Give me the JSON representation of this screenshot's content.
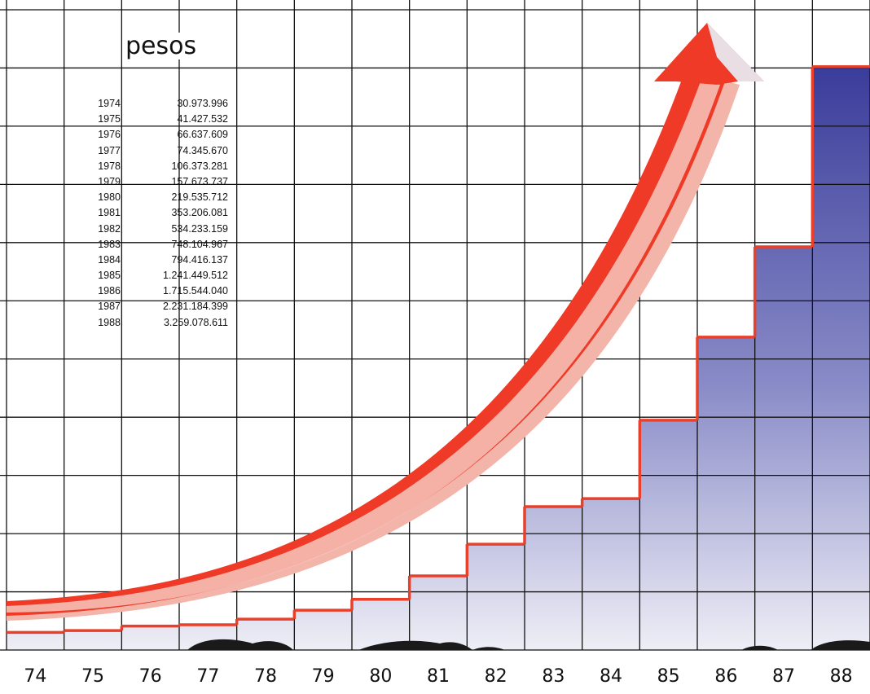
{
  "unit_label": "pesos",
  "colors": {
    "step_line": "#e8402a",
    "area_top": "#3a3c9a",
    "area_bottom": "#e8e8f4",
    "arrow_red": "#ee3a26",
    "grid": "#111111"
  },
  "chart_data": {
    "type": "line",
    "title": "",
    "xlabel": "",
    "ylabel": "pesos",
    "x_tick_labels": [
      "74",
      "75",
      "76",
      "77",
      "78",
      "79",
      "80",
      "81",
      "82",
      "83",
      "84",
      "85",
      "86",
      "87",
      "88"
    ],
    "table_years": [
      "1974",
      "1975",
      "1976",
      "1977",
      "1978",
      "1979",
      "1980",
      "1981",
      "1982",
      "1983",
      "1984",
      "1985",
      "1986",
      "1987",
      "1988"
    ],
    "table_values": [
      "30.973.996",
      "41.427.532",
      "66.637.609",
      "74.345.670",
      "106.373.281",
      "157.673.737",
      "219.535.712",
      "353.206.081",
      "534.233.159",
      "748.104.967",
      "794.416.137",
      "1.241.449.512",
      "1.715.544.040",
      "2.231.184.399",
      "3.259.078.611"
    ],
    "series": [
      {
        "values": [
          30973996,
          41427532,
          66637609,
          74345670,
          106373281,
          157673737,
          219535712,
          353206081,
          534233159,
          748104967,
          794416137,
          1241449512,
          1715544040,
          2231184399,
          3259078611
        ]
      }
    ],
    "ylim": [
      0,
      3500000000
    ],
    "grid": true,
    "legend": "top-left"
  }
}
